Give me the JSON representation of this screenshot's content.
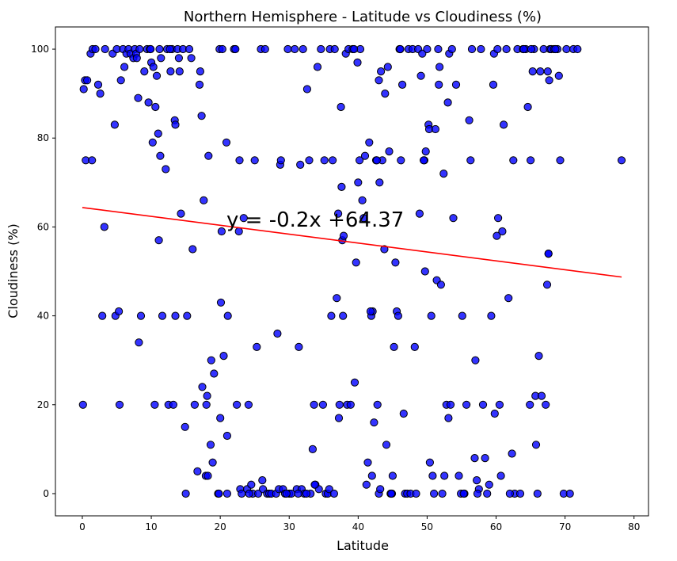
{
  "chart_data": {
    "type": "scatter",
    "title": "Northern Hemisphere - Latitude vs Cloudiness (%)",
    "xlabel": "Latitude",
    "ylabel": "Cloudiness (%)",
    "xlim": [
      -3.9,
      82.1
    ],
    "ylim": [
      -5,
      105
    ],
    "xticks": [
      "0",
      "10",
      "20",
      "30",
      "40",
      "50",
      "60",
      "70",
      "80"
    ],
    "yticks": [
      "0",
      "20",
      "40",
      "60",
      "80",
      "100"
    ],
    "grid": false,
    "point_color": "#0000ff",
    "point_edge_color": "#000000",
    "line_color": "#ff0000",
    "regression": {
      "slope": -0.2,
      "intercept": 64.37,
      "x_range": [
        0,
        78.2
      ]
    },
    "annotation": "y = -0.2x +64.37",
    "points": [
      [
        0.1,
        20
      ],
      [
        0.2,
        91
      ],
      [
        0.4,
        93
      ],
      [
        0.5,
        75
      ],
      [
        0.7,
        93
      ],
      [
        1.2,
        99
      ],
      [
        1.4,
        75
      ],
      [
        1.5,
        100
      ],
      [
        1.9,
        100
      ],
      [
        2.3,
        92
      ],
      [
        2.6,
        90
      ],
      [
        2.9,
        40
      ],
      [
        3.2,
        60
      ],
      [
        3.3,
        100
      ],
      [
        4.4,
        99
      ],
      [
        4.7,
        83
      ],
      [
        4.8,
        40
      ],
      [
        5.0,
        100
      ],
      [
        5.3,
        41
      ],
      [
        5.4,
        20
      ],
      [
        5.6,
        93
      ],
      [
        5.9,
        100
      ],
      [
        6.1,
        96
      ],
      [
        6.4,
        99
      ],
      [
        6.7,
        100
      ],
      [
        7.0,
        99
      ],
      [
        7.4,
        98
      ],
      [
        7.6,
        100
      ],
      [
        7.8,
        99
      ],
      [
        7.9,
        98
      ],
      [
        8.1,
        89
      ],
      [
        8.2,
        34
      ],
      [
        8.3,
        100
      ],
      [
        8.5,
        40
      ],
      [
        9.0,
        95
      ],
      [
        9.4,
        100
      ],
      [
        9.6,
        88
      ],
      [
        9.8,
        100
      ],
      [
        10.0,
        97
      ],
      [
        10.2,
        79
      ],
      [
        10.3,
        96
      ],
      [
        10.5,
        20
      ],
      [
        10.6,
        87
      ],
      [
        10.8,
        94
      ],
      [
        11.0,
        81
      ],
      [
        11.1,
        57
      ],
      [
        11.2,
        100
      ],
      [
        11.3,
        76
      ],
      [
        11.4,
        98
      ],
      [
        11.6,
        40
      ],
      [
        12.1,
        73
      ],
      [
        12.3,
        100
      ],
      [
        12.5,
        20
      ],
      [
        12.8,
        95
      ],
      [
        13.0,
        100
      ],
      [
        13.2,
        20
      ],
      [
        13.4,
        84
      ],
      [
        13.5,
        83
      ],
      [
        13.5,
        40
      ],
      [
        13.8,
        100
      ],
      [
        14.0,
        98
      ],
      [
        14.1,
        95
      ],
      [
        14.3,
        63
      ],
      [
        14.6,
        100
      ],
      [
        14.9,
        15
      ],
      [
        15.0,
        0
      ],
      [
        15.2,
        40
      ],
      [
        15.5,
        100
      ],
      [
        15.8,
        98
      ],
      [
        16.0,
        55
      ],
      [
        16.3,
        20
      ],
      [
        16.7,
        5
      ],
      [
        17.0,
        92
      ],
      [
        17.1,
        95
      ],
      [
        17.3,
        85
      ],
      [
        17.4,
        24
      ],
      [
        17.6,
        66
      ],
      [
        17.9,
        4
      ],
      [
        18.0,
        20
      ],
      [
        18.1,
        22
      ],
      [
        18.3,
        76
      ],
      [
        18.6,
        11
      ],
      [
        18.7,
        30
      ],
      [
        18.9,
        7
      ],
      [
        19.1,
        27
      ],
      [
        19.7,
        0
      ],
      [
        19.9,
        100
      ],
      [
        20.0,
        17
      ],
      [
        20.1,
        43
      ],
      [
        20.3,
        100
      ],
      [
        20.5,
        31
      ],
      [
        20.9,
        79
      ],
      [
        21.0,
        13
      ],
      [
        21.1,
        40
      ],
      [
        19.8,
        0
      ],
      [
        20.2,
        59
      ],
      [
        21.0,
        0
      ],
      [
        22.0,
        100
      ],
      [
        22.2,
        100
      ],
      [
        22.7,
        59
      ],
      [
        22.8,
        75
      ],
      [
        22.9,
        1
      ],
      [
        23.1,
        0
      ],
      [
        23.4,
        62
      ],
      [
        23.9,
        1
      ],
      [
        24.1,
        20
      ],
      [
        24.5,
        2
      ],
      [
        24.7,
        0
      ],
      [
        25.0,
        75
      ],
      [
        25.3,
        33
      ],
      [
        25.5,
        0
      ],
      [
        25.9,
        100
      ],
      [
        26.1,
        3
      ],
      [
        26.2,
        1
      ],
      [
        26.8,
        0
      ],
      [
        27.1,
        0
      ],
      [
        27.4,
        0
      ],
      [
        28.1,
        0
      ],
      [
        28.3,
        36
      ],
      [
        28.5,
        1
      ],
      [
        28.7,
        74
      ],
      [
        28.8,
        75
      ],
      [
        29.1,
        1
      ],
      [
        29.4,
        0
      ],
      [
        29.8,
        100
      ],
      [
        30.0,
        0
      ],
      [
        30.3,
        0
      ],
      [
        30.8,
        100
      ],
      [
        31.1,
        1
      ],
      [
        31.4,
        33
      ],
      [
        31.6,
        74
      ],
      [
        31.8,
        1
      ],
      [
        32.0,
        100
      ],
      [
        32.2,
        0
      ],
      [
        32.6,
        91
      ],
      [
        32.9,
        75
      ],
      [
        33.1,
        0
      ],
      [
        33.4,
        10
      ],
      [
        33.6,
        20
      ],
      [
        33.8,
        2
      ],
      [
        34.1,
        96
      ],
      [
        34.3,
        1
      ],
      [
        34.6,
        100
      ],
      [
        34.9,
        20
      ],
      [
        35.1,
        75
      ],
      [
        35.3,
        0
      ],
      [
        35.6,
        0
      ],
      [
        35.9,
        100
      ],
      [
        36.1,
        40
      ],
      [
        36.3,
        75
      ],
      [
        36.6,
        100
      ],
      [
        36.9,
        44
      ],
      [
        37.1,
        63
      ],
      [
        37.2,
        17
      ],
      [
        37.3,
        20
      ],
      [
        37.5,
        87
      ],
      [
        37.6,
        69
      ],
      [
        37.7,
        57
      ],
      [
        37.8,
        40
      ],
      [
        37.9,
        58
      ],
      [
        38.2,
        99
      ],
      [
        38.4,
        20
      ],
      [
        38.6,
        100
      ],
      [
        38.9,
        20
      ],
      [
        39.2,
        100
      ],
      [
        39.5,
        25
      ],
      [
        39.7,
        52
      ],
      [
        39.9,
        97
      ],
      [
        40.0,
        70
      ],
      [
        40.2,
        75
      ],
      [
        40.3,
        100
      ],
      [
        40.6,
        66
      ],
      [
        40.8,
        62
      ],
      [
        41.0,
        76
      ],
      [
        41.2,
        2
      ],
      [
        41.4,
        7
      ],
      [
        41.6,
        79
      ],
      [
        41.9,
        40
      ],
      [
        42.0,
        4
      ],
      [
        42.1,
        41
      ],
      [
        42.3,
        16
      ],
      [
        42.6,
        75
      ],
      [
        42.8,
        20
      ],
      [
        43.0,
        93
      ],
      [
        43.1,
        70
      ],
      [
        43.3,
        95
      ],
      [
        43.5,
        75
      ],
      [
        43.8,
        55
      ],
      [
        43.9,
        90
      ],
      [
        44.1,
        11
      ],
      [
        44.3,
        96
      ],
      [
        44.5,
        77
      ],
      [
        44.7,
        0
      ],
      [
        44.9,
        0
      ],
      [
        45.0,
        4
      ],
      [
        45.2,
        33
      ],
      [
        45.4,
        52
      ],
      [
        45.6,
        41
      ],
      [
        45.8,
        40
      ],
      [
        46.0,
        100
      ],
      [
        46.2,
        75
      ],
      [
        46.4,
        92
      ],
      [
        46.6,
        18
      ],
      [
        46.8,
        0
      ],
      [
        47.1,
        0
      ],
      [
        47.3,
        100
      ],
      [
        47.6,
        0
      ],
      [
        47.9,
        100
      ],
      [
        48.2,
        33
      ],
      [
        48.4,
        0
      ],
      [
        48.7,
        100
      ],
      [
        48.9,
        63
      ],
      [
        49.1,
        94
      ],
      [
        49.3,
        99
      ],
      [
        49.6,
        75
      ],
      [
        49.7,
        50
      ],
      [
        49.8,
        77
      ],
      [
        50.0,
        100
      ],
      [
        50.2,
        83
      ],
      [
        50.3,
        82
      ],
      [
        50.4,
        7
      ],
      [
        50.6,
        40
      ],
      [
        50.8,
        4
      ],
      [
        51.0,
        0
      ],
      [
        51.2,
        82
      ],
      [
        51.4,
        48
      ],
      [
        51.6,
        100
      ],
      [
        51.7,
        92
      ],
      [
        52.0,
        47
      ],
      [
        52.2,
        0
      ],
      [
        52.5,
        4
      ],
      [
        52.8,
        20
      ],
      [
        53.0,
        88
      ],
      [
        53.2,
        99
      ],
      [
        53.4,
        20
      ],
      [
        53.6,
        100
      ],
      [
        53.8,
        62
      ],
      [
        54.2,
        92
      ],
      [
        54.6,
        4
      ],
      [
        54.9,
        0
      ],
      [
        55.1,
        40
      ],
      [
        55.4,
        0
      ],
      [
        55.7,
        20
      ],
      [
        56.1,
        84
      ],
      [
        56.3,
        75
      ],
      [
        56.5,
        100
      ],
      [
        56.9,
        8
      ],
      [
        57.0,
        30
      ],
      [
        57.2,
        3
      ],
      [
        57.5,
        1
      ],
      [
        57.8,
        100
      ],
      [
        58.1,
        20
      ],
      [
        58.4,
        8
      ],
      [
        58.7,
        0
      ],
      [
        59.0,
        2
      ],
      [
        59.3,
        40
      ],
      [
        59.6,
        92
      ],
      [
        59.8,
        18
      ],
      [
        60.1,
        58
      ],
      [
        60.3,
        62
      ],
      [
        60.5,
        20
      ],
      [
        60.7,
        4
      ],
      [
        60.9,
        59
      ],
      [
        61.1,
        83
      ],
      [
        61.5,
        100
      ],
      [
        61.8,
        44
      ],
      [
        62.3,
        9
      ],
      [
        62.5,
        75
      ],
      [
        62.7,
        0
      ],
      [
        63.1,
        100
      ],
      [
        63.5,
        0
      ],
      [
        63.9,
        100
      ],
      [
        64.3,
        100
      ],
      [
        64.6,
        87
      ],
      [
        64.9,
        20
      ],
      [
        65.0,
        75
      ],
      [
        65.3,
        95
      ],
      [
        65.5,
        100
      ],
      [
        65.7,
        22
      ],
      [
        65.8,
        11
      ],
      [
        66.0,
        0
      ],
      [
        66.2,
        31
      ],
      [
        66.4,
        95
      ],
      [
        66.6,
        22
      ],
      [
        66.9,
        100
      ],
      [
        67.2,
        20
      ],
      [
        67.4,
        47
      ],
      [
        67.6,
        54
      ],
      [
        67.8,
        100
      ],
      [
        68.0,
        100
      ],
      [
        68.4,
        100
      ],
      [
        68.9,
        100
      ],
      [
        69.1,
        94
      ],
      [
        69.3,
        75
      ],
      [
        69.8,
        0
      ],
      [
        70.2,
        100
      ],
      [
        70.7,
        0
      ],
      [
        71.2,
        100
      ],
      [
        71.8,
        100
      ],
      [
        78.2,
        75
      ],
      [
        9.9,
        100
      ],
      [
        12.7,
        100
      ],
      [
        18.2,
        4
      ],
      [
        22.4,
        20
      ],
      [
        24.2,
        0
      ],
      [
        26.5,
        100
      ],
      [
        29.6,
        0
      ],
      [
        31.3,
        0
      ],
      [
        32.5,
        0
      ],
      [
        33.7,
        2
      ],
      [
        35.8,
        1
      ],
      [
        36.5,
        0
      ],
      [
        39.4,
        100
      ],
      [
        41.8,
        41
      ],
      [
        42.7,
        75
      ],
      [
        43.0,
        0
      ],
      [
        43.2,
        1
      ],
      [
        44.8,
        0
      ],
      [
        46.1,
        100
      ],
      [
        49.5,
        75
      ],
      [
        51.8,
        96
      ],
      [
        52.4,
        72
      ],
      [
        53.1,
        17
      ],
      [
        55.3,
        0
      ],
      [
        57.3,
        0
      ],
      [
        59.7,
        99
      ],
      [
        60.2,
        100
      ],
      [
        62.0,
        0
      ],
      [
        64.0,
        100
      ],
      [
        65.1,
        100
      ],
      [
        67.5,
        95
      ],
      [
        67.7,
        93
      ],
      [
        67.6,
        54
      ],
      [
        68.6,
        100
      ]
    ]
  }
}
